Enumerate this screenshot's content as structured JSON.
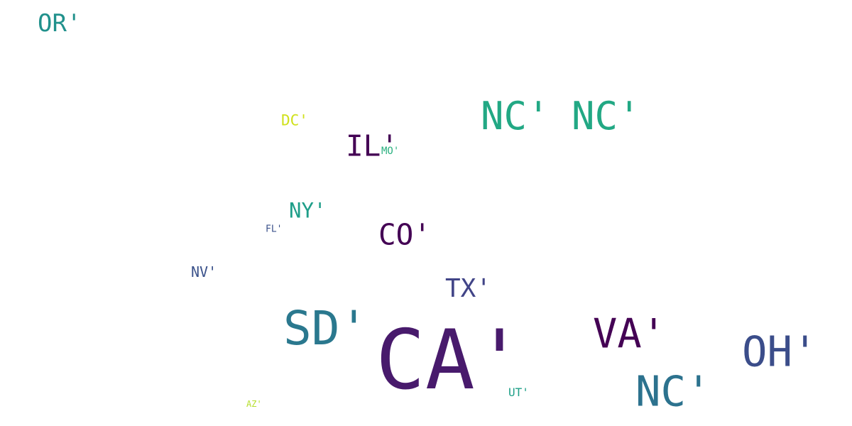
{
  "words": [
    {
      "text": "OR'",
      "color": "#21918c"
    },
    {
      "text": "DC'",
      "color": "#d0e11c"
    },
    {
      "text": "NC'",
      "color": "#22a884"
    },
    {
      "text": "NC'",
      "color": "#22a884"
    },
    {
      "text": "IL'",
      "color": "#440154"
    },
    {
      "text": "MO'",
      "color": "#2ab07f"
    },
    {
      "text": "NY'",
      "color": "#1f9e89"
    },
    {
      "text": "FL'",
      "color": "#3b528b"
    },
    {
      "text": "CO'",
      "color": "#440154"
    },
    {
      "text": "NV'",
      "color": "#3b528b"
    },
    {
      "text": "TX'",
      "color": "#414487"
    },
    {
      "text": "SD'",
      "color": "#2a788e"
    },
    {
      "text": "CA'",
      "color": "#481a6c"
    },
    {
      "text": "VA'",
      "color": "#440154"
    },
    {
      "text": "OH'",
      "color": "#3b4d8a"
    },
    {
      "text": "NC'",
      "color": "#2c728e"
    },
    {
      "text": "UT'",
      "color": "#1fa088"
    },
    {
      "text": "AZ'",
      "color": "#b5de2b"
    }
  ]
}
